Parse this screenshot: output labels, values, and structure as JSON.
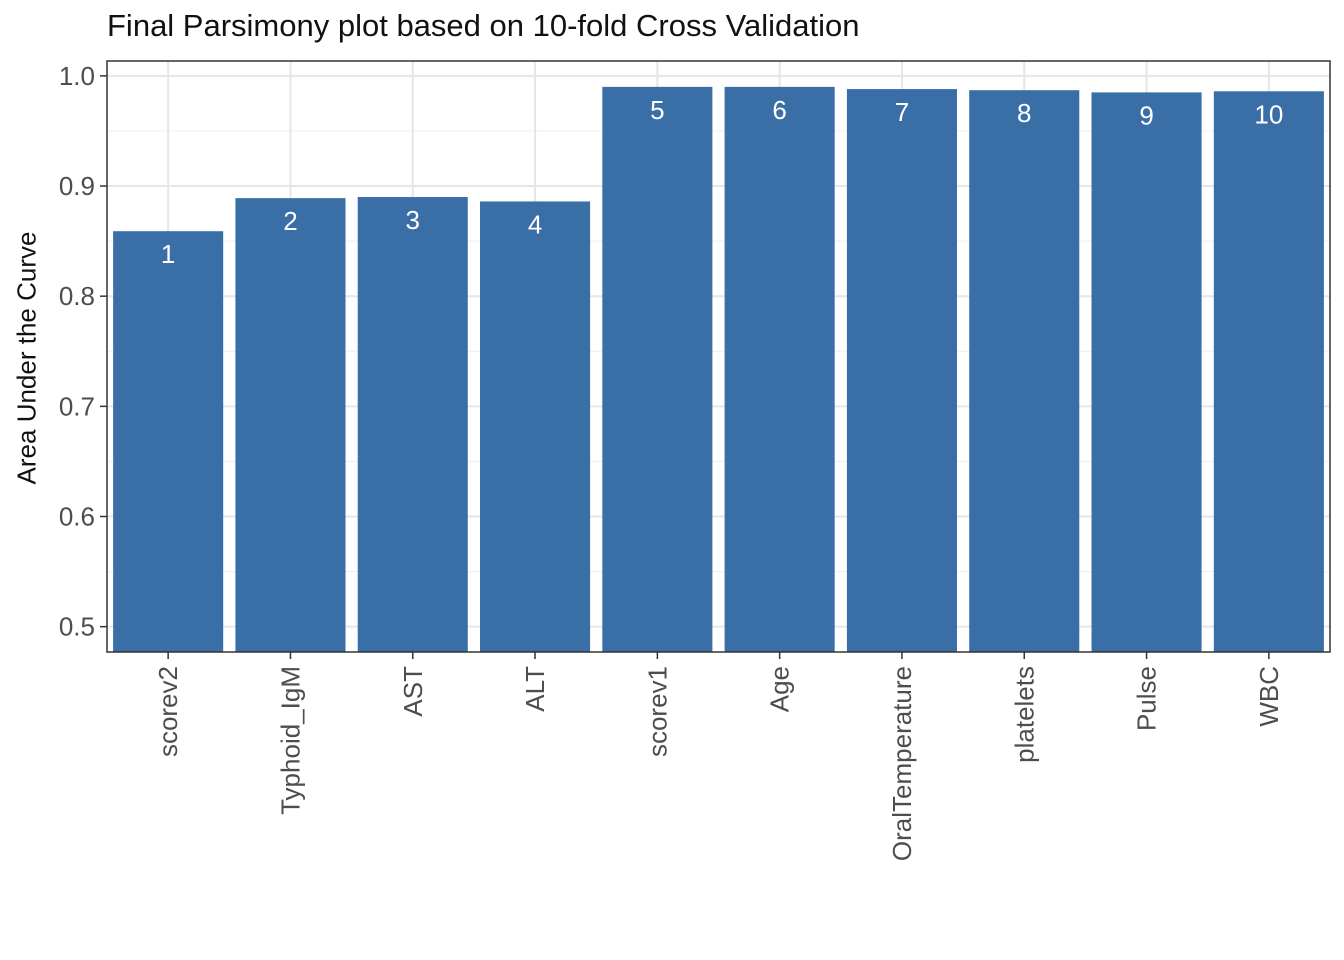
{
  "chart_data": {
    "type": "bar",
    "title": "Final Parsimony plot based on 10-fold Cross Validation",
    "xlabel": "",
    "ylabel": "Area Under the Curve",
    "categories": [
      "scorev2",
      "Typhoid_IgM",
      "AST",
      "ALT",
      "scorev1",
      "Age",
      "OralTemperature",
      "platelets",
      "Pulse",
      "WBC"
    ],
    "values": [
      0.859,
      0.889,
      0.89,
      0.886,
      0.99,
      0.99,
      0.988,
      0.987,
      0.985,
      0.986
    ],
    "bar_labels": [
      "1",
      "2",
      "3",
      "4",
      "5",
      "6",
      "7",
      "8",
      "9",
      "10"
    ],
    "yticks": [
      "0.5",
      "0.6",
      "0.7",
      "0.8",
      "0.9",
      "1.0"
    ],
    "ylim": [
      0.477,
      1.0135
    ],
    "bar_color": "#3A6EA7",
    "grid": true,
    "legend": "none"
  }
}
